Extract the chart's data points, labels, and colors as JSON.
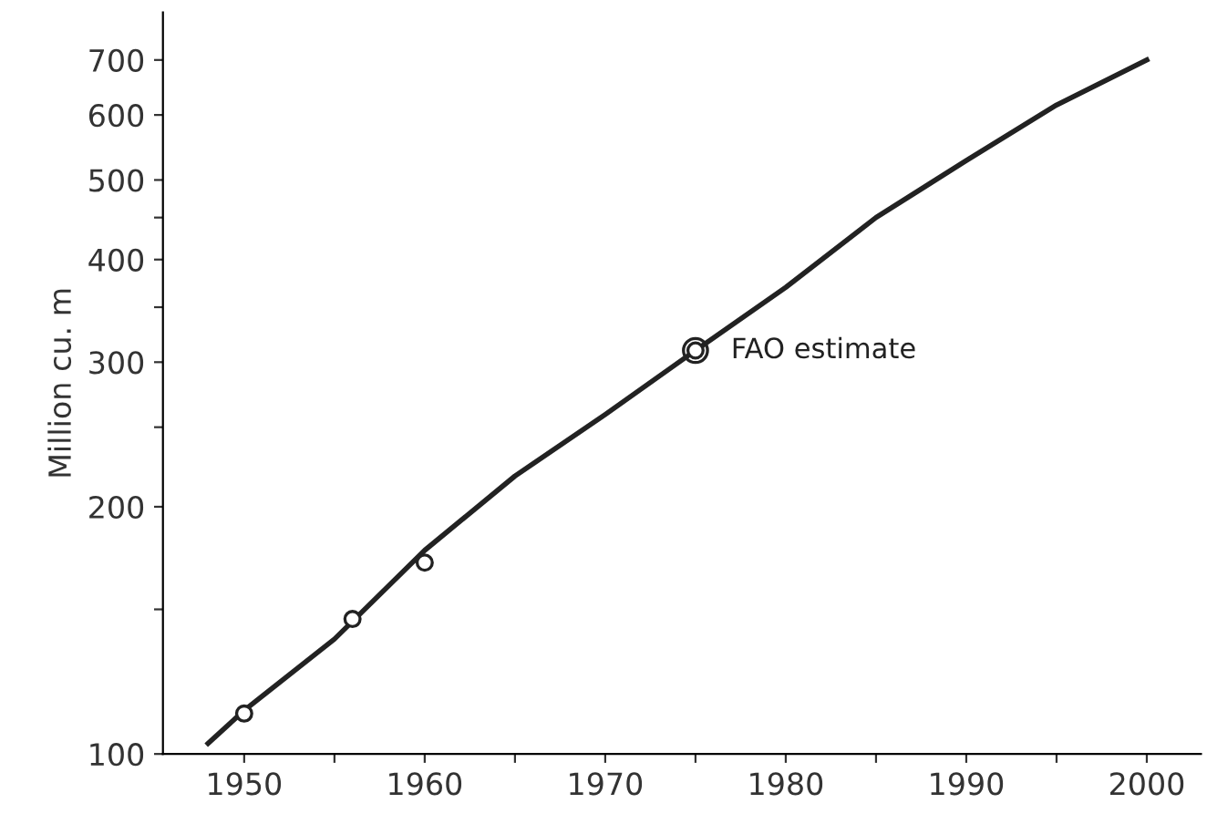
{
  "chart_data": {
    "type": "line",
    "ylabel": "Million cu. m",
    "log": "y",
    "grid": false,
    "legend": false,
    "xlim": [
      1945.5,
      2003
    ],
    "ylim": [
      100,
      800
    ],
    "xticks": [
      1950,
      {
        "value": 1955,
        "label": null
      },
      1960,
      {
        "value": 1965,
        "label": null
      },
      1970,
      {
        "value": 1975,
        "label": null
      },
      1980,
      {
        "value": 1985,
        "label": null
      },
      1990,
      {
        "value": 1995,
        "label": null
      },
      2000
    ],
    "yticks": [
      100,
      {
        "value": 150,
        "label": null
      },
      200,
      {
        "value": 250,
        "label": null
      },
      300,
      {
        "value": 350,
        "label": null
      },
      400,
      {
        "value": 450,
        "label": null
      },
      500,
      600,
      700
    ],
    "series": [
      {
        "color": "#222222",
        "marker": "none",
        "line_style": "solid",
        "x": [
          1948,
          1950,
          1955,
          1960,
          1965,
          1970,
          1975,
          1980,
          1985,
          1990,
          1995,
          2000
        ],
        "values": [
          103,
          113,
          138,
          177,
          218,
          259,
          310,
          370,
          450,
          528,
          617,
          700
        ]
      },
      {
        "type": "scatter",
        "color": "#222222",
        "marker": "circle",
        "x": [
          1950,
          1956,
          1960
        ],
        "values": [
          112,
          146,
          171
        ]
      },
      {
        "type": "scatter",
        "color": "#222222",
        "marker": "circle",
        "x": [
          1975
        ],
        "values": [
          310
        ]
      }
    ],
    "annotations": [
      {
        "text": "FAO estimate",
        "x": 1975,
        "y": 310
      }
    ]
  }
}
